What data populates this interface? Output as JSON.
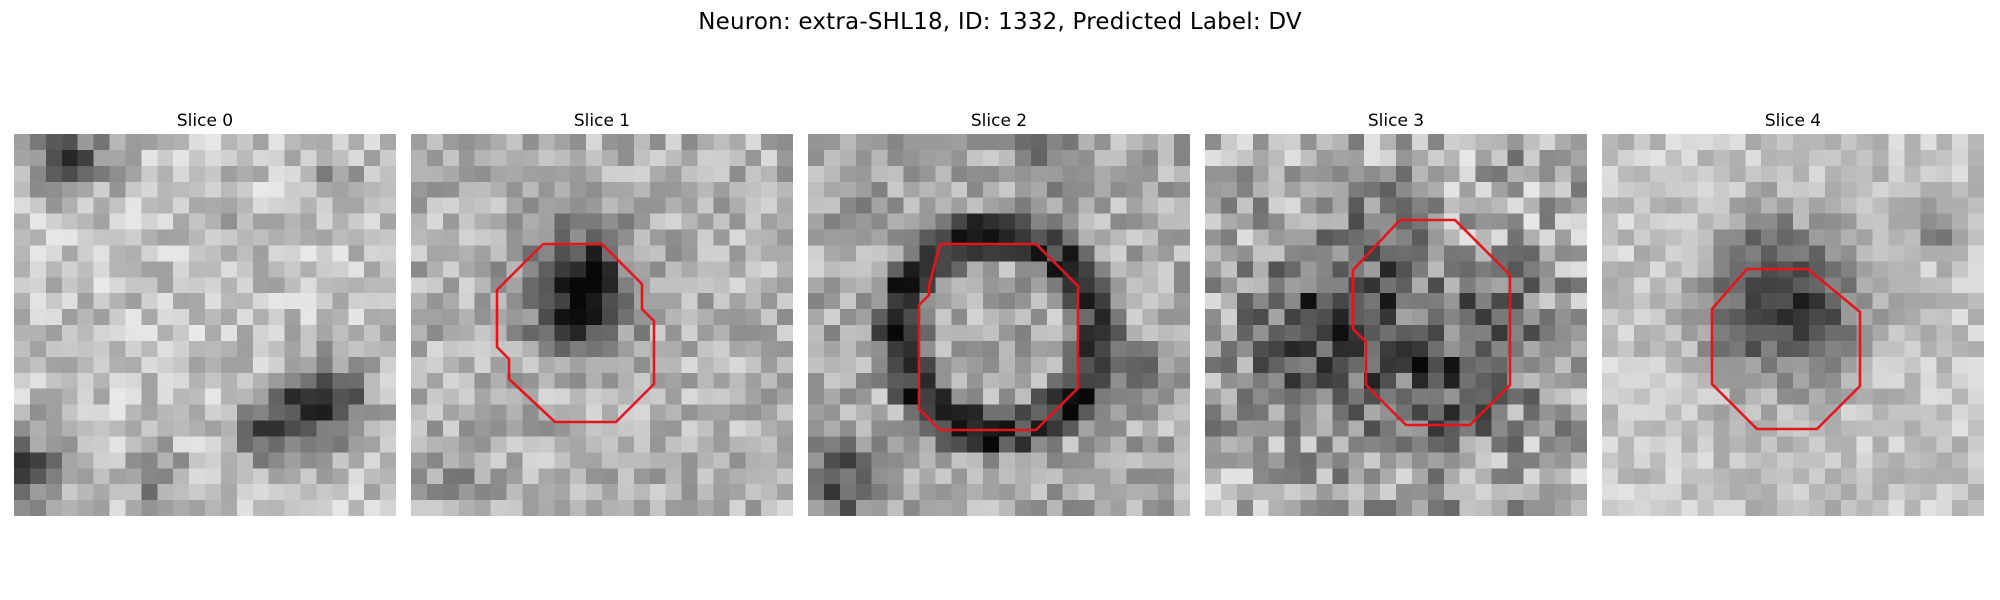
{
  "figure": {
    "title": "Neuron: extra-SHL18, ID: 1332, Predicted Label: DV",
    "contour_color": "#e8141b",
    "image_colormap": "gray"
  },
  "panels": [
    {
      "title": "Slice 0",
      "has_contour": false
    },
    {
      "title": "Slice 1",
      "has_contour": true
    },
    {
      "title": "Slice 2",
      "has_contour": true
    },
    {
      "title": "Slice 3",
      "has_contour": true
    },
    {
      "title": "Slice 4",
      "has_contour": true
    }
  ]
}
